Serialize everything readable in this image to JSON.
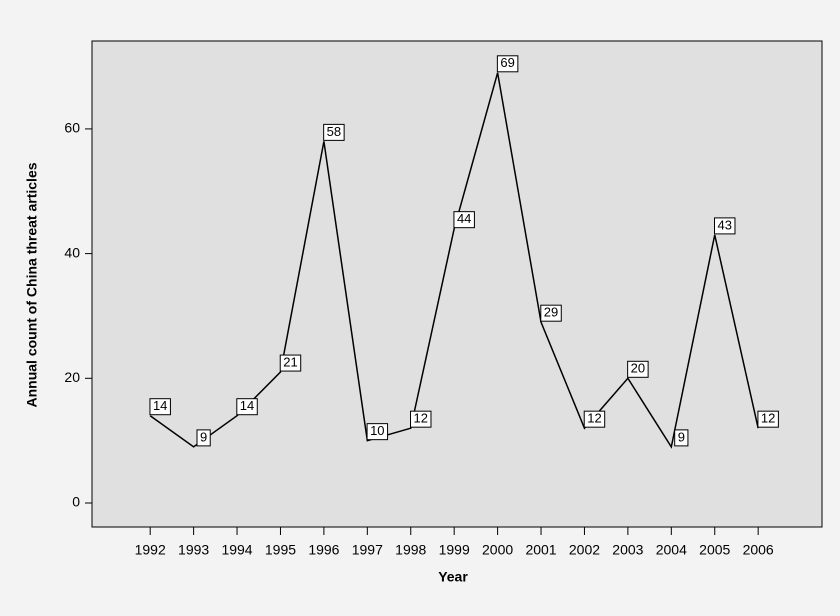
{
  "chart_data": {
    "type": "line",
    "x": [
      1992,
      1993,
      1994,
      1995,
      1996,
      1997,
      1998,
      1999,
      2000,
      2001,
      2002,
      2003,
      2004,
      2005,
      2006
    ],
    "values": [
      14,
      9,
      14,
      21,
      58,
      10,
      12,
      44,
      69,
      29,
      12,
      20,
      9,
      43,
      12
    ],
    "color": "#000000",
    "x_label": "Year",
    "y_label": "Annual count of China threat articles",
    "xlim": [
      1990.66,
      2007.47
    ],
    "xticks": [
      1992,
      1993,
      1994,
      1995,
      1996,
      1997,
      1998,
      1999,
      2000,
      2001,
      2002,
      2003,
      2004,
      2005,
      2006
    ],
    "ylim": [
      -3.85,
      74.1
    ],
    "yticks": [
      0,
      20,
      40,
      60
    ]
  }
}
